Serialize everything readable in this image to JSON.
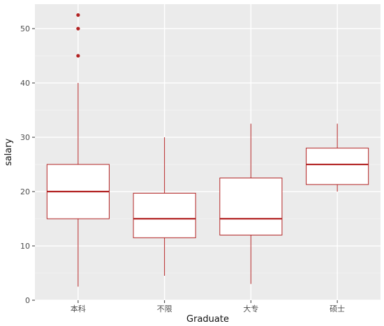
{
  "chart_data": {
    "type": "boxplot",
    "xlabel": "Graduate",
    "ylabel": "salary",
    "categories": [
      "本科",
      "不限",
      "大专",
      "硕士"
    ],
    "boxes": [
      {
        "category": "本科",
        "whisker_low": 2.5,
        "q1": 15,
        "median": 20,
        "q3": 25,
        "whisker_high": 40,
        "outliers": [
          45,
          50,
          52.5
        ]
      },
      {
        "category": "不限",
        "whisker_low": 4.5,
        "q1": 11.5,
        "median": 15,
        "q3": 19.7,
        "whisker_high": 30,
        "outliers": []
      },
      {
        "category": "大专",
        "whisker_low": 3,
        "q1": 12,
        "median": 15,
        "q3": 22.5,
        "whisker_high": 32.5,
        "outliers": []
      },
      {
        "category": "硕士",
        "whisker_low": 20,
        "q1": 21.3,
        "median": 25,
        "q3": 28,
        "whisker_high": 32.5,
        "outliers": []
      }
    ],
    "y_ticks": [
      0,
      10,
      20,
      30,
      40,
      50
    ],
    "ylim": [
      0,
      54.5
    ],
    "grid": true,
    "colors": {
      "panel_background": "#ebebeb",
      "grid_major": "#ffffff",
      "grid_minor": "#f5f5f5",
      "box_stroke": "#b22222",
      "box_fill": "#ffffff",
      "outlier": "#b22222"
    }
  }
}
